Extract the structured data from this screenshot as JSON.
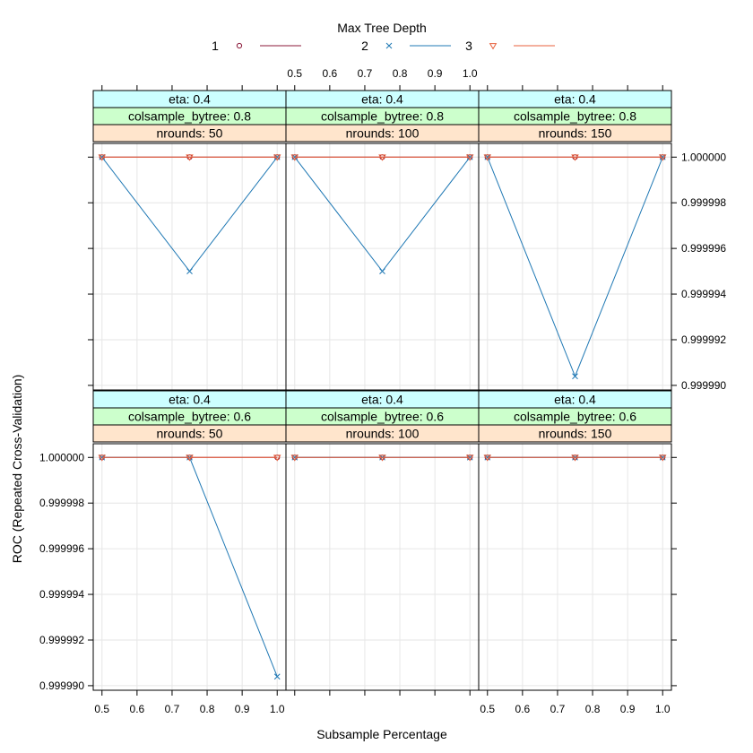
{
  "chart_data": {
    "type": "line",
    "xlabel": "Subsample Percentage",
    "ylabel": "ROC (Repeated Cross-Validation)",
    "legend": {
      "title": "Max Tree Depth",
      "placement": "top",
      "entries": [
        "1",
        "2",
        "3"
      ]
    },
    "x_ticks": [
      "0.5",
      "0.6",
      "0.7",
      "0.8",
      "0.9",
      "1.0"
    ],
    "x_tick_values": [
      0.5,
      0.6,
      0.7,
      0.8,
      0.9,
      1.0
    ],
    "y_ticks": [
      "0.999990",
      "0.999992",
      "0.999994",
      "0.999996",
      "0.999998",
      "1.000000"
    ],
    "y_tick_values": [
      0.99999,
      0.999992,
      0.999994,
      0.999996,
      0.999998,
      1.0
    ],
    "xlim": [
      0.475,
      1.025
    ],
    "ylim": [
      0.9999898,
      1.0000006
    ],
    "grid": true,
    "colors": {
      "series1": "#8b1a3a",
      "series2": "#1f78b4",
      "series3": "#e8603c",
      "strip_eta": "#ccffff",
      "strip_colsample": "#ccffcc",
      "strip_nrounds": "#ffe5cc",
      "grid": "#e6e6e6"
    },
    "panels": [
      {
        "strips": [
          "eta: 0.4",
          "colsample_bytree: 0.8",
          "nrounds:  50"
        ],
        "series": [
          {
            "name": "1",
            "x": [
              0.5,
              0.75,
              1.0
            ],
            "y": [
              1.0,
              1.0,
              1.0
            ]
          },
          {
            "name": "2",
            "x": [
              0.5,
              0.75,
              1.0
            ],
            "y": [
              1.0,
              0.999995,
              1.0
            ]
          },
          {
            "name": "3",
            "x": [
              0.5,
              0.75,
              1.0
            ],
            "y": [
              1.0,
              1.0,
              1.0
            ]
          }
        ]
      },
      {
        "strips": [
          "eta: 0.4",
          "colsample_bytree: 0.8",
          "nrounds: 100"
        ],
        "series": [
          {
            "name": "1",
            "x": [
              0.5,
              0.75,
              1.0
            ],
            "y": [
              1.0,
              1.0,
              1.0
            ]
          },
          {
            "name": "2",
            "x": [
              0.5,
              0.75,
              1.0
            ],
            "y": [
              1.0,
              0.999995,
              1.0
            ]
          },
          {
            "name": "3",
            "x": [
              0.5,
              0.75,
              1.0
            ],
            "y": [
              1.0,
              1.0,
              1.0
            ]
          }
        ]
      },
      {
        "strips": [
          "eta: 0.4",
          "colsample_bytree: 0.8",
          "nrounds: 150"
        ],
        "series": [
          {
            "name": "1",
            "x": [
              0.5,
              0.75,
              1.0
            ],
            "y": [
              1.0,
              1.0,
              1.0
            ]
          },
          {
            "name": "2",
            "x": [
              0.5,
              0.75,
              1.0
            ],
            "y": [
              1.0,
              0.9999904,
              1.0
            ]
          },
          {
            "name": "3",
            "x": [
              0.5,
              0.75,
              1.0
            ],
            "y": [
              1.0,
              1.0,
              1.0
            ]
          }
        ]
      },
      {
        "strips": [
          "eta: 0.4",
          "colsample_bytree: 0.6",
          "nrounds:  50"
        ],
        "series": [
          {
            "name": "1",
            "x": [
              0.5,
              0.75,
              1.0
            ],
            "y": [
              1.0,
              1.0,
              1.0
            ]
          },
          {
            "name": "2",
            "x": [
              0.5,
              0.75,
              1.0
            ],
            "y": [
              1.0,
              1.0,
              0.9999904
            ]
          },
          {
            "name": "3",
            "x": [
              0.5,
              0.75,
              1.0
            ],
            "y": [
              1.0,
              1.0,
              1.0
            ]
          }
        ]
      },
      {
        "strips": [
          "eta: 0.4",
          "colsample_bytree: 0.6",
          "nrounds: 100"
        ],
        "series": [
          {
            "name": "1",
            "x": [
              0.5,
              0.75,
              1.0
            ],
            "y": [
              1.0,
              1.0,
              1.0
            ]
          },
          {
            "name": "2",
            "x": [
              0.5,
              0.75,
              1.0
            ],
            "y": [
              1.0,
              1.0,
              1.0
            ]
          },
          {
            "name": "3",
            "x": [
              0.5,
              0.75,
              1.0
            ],
            "y": [
              1.0,
              1.0,
              1.0
            ]
          }
        ]
      },
      {
        "strips": [
          "eta: 0.4",
          "colsample_bytree: 0.6",
          "nrounds: 150"
        ],
        "series": [
          {
            "name": "1",
            "x": [
              0.5,
              0.75,
              1.0
            ],
            "y": [
              1.0,
              1.0,
              1.0
            ]
          },
          {
            "name": "2",
            "x": [
              0.5,
              0.75,
              1.0
            ],
            "y": [
              1.0,
              1.0,
              1.0
            ]
          },
          {
            "name": "3",
            "x": [
              0.5,
              0.75,
              1.0
            ],
            "y": [
              1.0,
              1.0,
              1.0
            ]
          }
        ]
      }
    ]
  }
}
